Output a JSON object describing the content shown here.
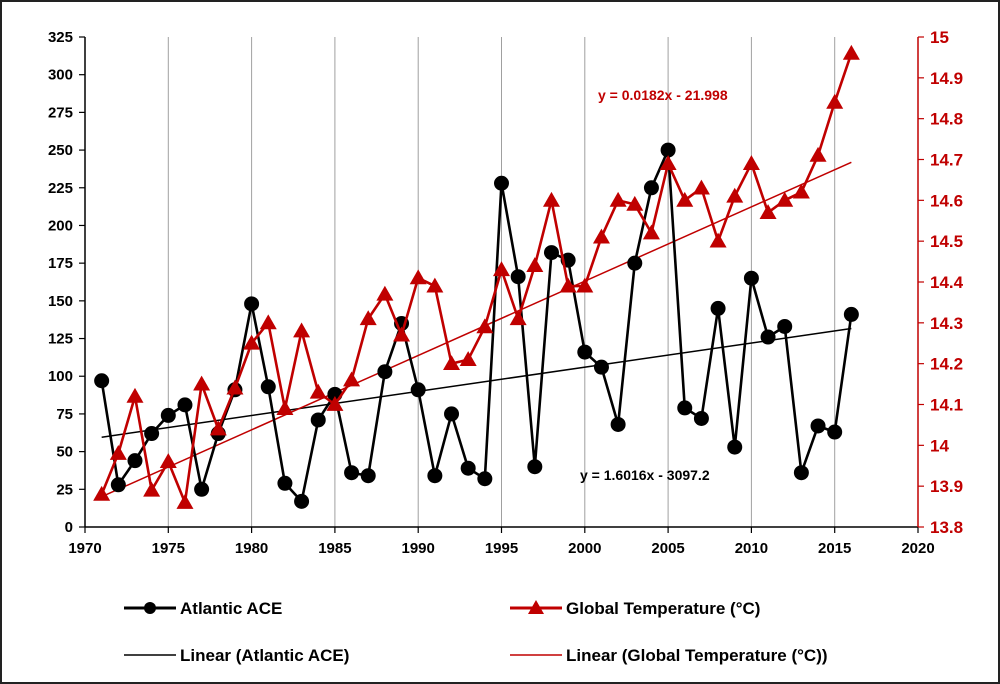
{
  "chart_data": {
    "type": "line",
    "x": [
      1971,
      1972,
      1973,
      1974,
      1975,
      1976,
      1977,
      1978,
      1979,
      1980,
      1981,
      1982,
      1983,
      1984,
      1985,
      1986,
      1987,
      1988,
      1989,
      1990,
      1991,
      1992,
      1993,
      1994,
      1995,
      1996,
      1997,
      1998,
      1999,
      2000,
      2001,
      2002,
      2003,
      2004,
      2005,
      2006,
      2007,
      2008,
      2009,
      2010,
      2011,
      2012,
      2013,
      2014,
      2015,
      2016
    ],
    "series": [
      {
        "name": "Atlantic ACE",
        "axis": "left",
        "color": "#000000",
        "marker": "circle",
        "values": [
          97,
          28,
          44,
          62,
          74,
          81,
          25,
          62,
          91,
          148,
          93,
          29,
          17,
          71,
          88,
          36,
          34,
          103,
          135,
          91,
          34,
          75,
          39,
          32,
          228,
          166,
          40,
          182,
          177,
          116,
          106,
          68,
          175,
          225,
          250,
          79,
          72,
          145,
          53,
          165,
          126,
          133,
          36,
          67,
          63,
          141
        ]
      },
      {
        "name": "Global Temperature (°C)",
        "axis": "right",
        "color": "#c00000",
        "marker": "triangle",
        "values": [
          13.88,
          13.98,
          14.12,
          13.89,
          13.96,
          13.86,
          14.15,
          14.04,
          14.14,
          14.25,
          14.3,
          14.09,
          14.28,
          14.13,
          14.1,
          14.16,
          14.31,
          14.37,
          14.27,
          14.41,
          14.39,
          14.2,
          14.21,
          14.29,
          14.43,
          14.31,
          14.44,
          14.6,
          14.39,
          14.39,
          14.51,
          14.6,
          14.59,
          14.52,
          14.69,
          14.6,
          14.63,
          14.5,
          14.61,
          14.69,
          14.57,
          14.6,
          14.62,
          14.71,
          14.84,
          14.96
        ]
      }
    ],
    "trendlines": [
      {
        "name": "Linear (Atlantic ACE)",
        "axis": "left",
        "color": "#000000",
        "slope": 1.6016,
        "intercept": -3097.2,
        "equation": "y = 1.6016x - 3097.2"
      },
      {
        "name": "Linear (Global Temperature (°C))",
        "axis": "right",
        "color": "#c00000",
        "slope": 0.0182,
        "intercept": -21.998,
        "equation": "y = 0.0182x - 21.998"
      }
    ],
    "xlim": [
      1970,
      2020
    ],
    "ylim_left": [
      0,
      325
    ],
    "ylim_right": [
      13.8,
      15
    ],
    "x_ticks": [
      "1970",
      "1975",
      "1980",
      "1985",
      "1990",
      "1995",
      "2000",
      "2005",
      "2010",
      "2015",
      "2020"
    ],
    "y_ticks_left": [
      "0",
      "25",
      "50",
      "75",
      "100",
      "125",
      "150",
      "175",
      "200",
      "225",
      "250",
      "275",
      "300",
      "325"
    ],
    "y_ticks_right": [
      "13.8",
      "13.9",
      "14",
      "14.1",
      "14.2",
      "14.3",
      "14.4",
      "14.5",
      "14.6",
      "14.7",
      "14.8",
      "14.9",
      "15"
    ],
    "grid": "vertical",
    "legend_position": "bottom",
    "legend": {
      "ace": "Atlantic ACE",
      "temp": "Global Temperature (°C)",
      "lin_ace": "Linear (Atlantic ACE)",
      "lin_temp": "Linear (Global Temperature (°C))"
    },
    "colors": {
      "ace": "#000000",
      "temp": "#c00000",
      "grid": "#a0a0a0"
    }
  }
}
